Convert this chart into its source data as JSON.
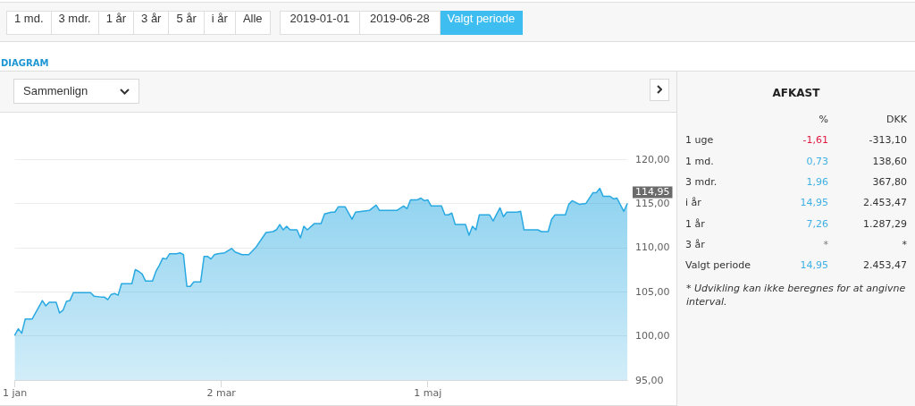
{
  "chart_data": [
    {
      "type": "area",
      "title": "DIAGRAM",
      "annotations": [
        "1 md.",
        "3 mdr.",
        "1 år",
        "3 år",
        "5 år",
        "i år",
        "Alle",
        "2019-01-01",
        "2019-06-28",
        "Valgt periode",
        "Sammenlign"
      ],
      "x": [
        "2019-01-01",
        "2019-01-02",
        "2019-01-03",
        "2019-01-04",
        "2019-01-06",
        "2019-01-09",
        "2019-01-10",
        "2019-01-11",
        "2019-01-13",
        "2019-01-14",
        "2019-01-15",
        "2019-01-16",
        "2019-01-17",
        "2019-01-18",
        "2019-01-23",
        "2019-01-24",
        "2019-01-26",
        "2019-01-27",
        "2019-01-28",
        "2019-01-29",
        "2019-01-30",
        "2019-01-31",
        "2019-02-01",
        "2019-02-04",
        "2019-02-05",
        "2019-02-06",
        "2019-02-07",
        "2019-02-08",
        "2019-02-10",
        "2019-02-11",
        "2019-02-12",
        "2019-02-13",
        "2019-02-14",
        "2019-02-15",
        "2019-02-17",
        "2019-02-18",
        "2019-02-19",
        "2019-02-20",
        "2019-02-21",
        "2019-02-22",
        "2019-02-24",
        "2019-02-25",
        "2019-02-26",
        "2019-02-27",
        "2019-02-28",
        "2019-03-01",
        "2019-03-03",
        "2019-03-05",
        "2019-03-06",
        "2019-03-08",
        "2019-03-10",
        "2019-03-12",
        "2019-03-15",
        "2019-03-17",
        "2019-03-18",
        "2019-03-19",
        "2019-03-20",
        "2019-03-21",
        "2019-03-22",
        "2019-03-24",
        "2019-03-25",
        "2019-03-26",
        "2019-03-27",
        "2019-03-29",
        "2019-03-31",
        "2019-04-01",
        "2019-04-03",
        "2019-04-04",
        "2019-04-05",
        "2019-04-07",
        "2019-04-09",
        "2019-04-10",
        "2019-04-12",
        "2019-04-14",
        "2019-04-16",
        "2019-04-17",
        "2019-04-22",
        "2019-04-24",
        "2019-04-25",
        "2019-04-26",
        "2019-04-28",
        "2019-04-29",
        "2019-04-30",
        "2019-05-01",
        "2019-05-02",
        "2019-05-05",
        "2019-05-06",
        "2019-05-07",
        "2019-05-08",
        "2019-05-09",
        "2019-05-12",
        "2019-05-13",
        "2019-05-14",
        "2019-05-15",
        "2019-05-16",
        "2019-05-19",
        "2019-05-20",
        "2019-05-22",
        "2019-05-23",
        "2019-05-24",
        "2019-05-27",
        "2019-05-28",
        "2019-05-29",
        "2019-06-02",
        "2019-06-03",
        "2019-06-05",
        "2019-06-06",
        "2019-06-07",
        "2019-06-10",
        "2019-06-11",
        "2019-06-12",
        "2019-06-14",
        "2019-06-16",
        "2019-06-18",
        "2019-06-19",
        "2019-06-20",
        "2019-06-21",
        "2019-06-23",
        "2019-06-24",
        "2019-06-25",
        "2019-06-27",
        "2019-06-28"
      ],
      "values": [
        100.1,
        100.8,
        100.3,
        101.9,
        101.9,
        104.0,
        103.4,
        103.8,
        103.8,
        102.6,
        102.9,
        103.9,
        104.0,
        104.9,
        104.9,
        104.5,
        104.4,
        104.4,
        104.1,
        104.7,
        104.8,
        104.6,
        105.9,
        105.9,
        107.5,
        107.3,
        107.0,
        106.2,
        106.2,
        107.3,
        108.0,
        108.8,
        108.7,
        109.3,
        109.3,
        109.4,
        109.2,
        105.6,
        105.6,
        106.1,
        106.1,
        109.0,
        109.0,
        108.7,
        109.2,
        109.3,
        109.4,
        109.9,
        109.5,
        109.2,
        109.2,
        110.0,
        111.7,
        111.8,
        112.0,
        112.6,
        112.0,
        112.4,
        112.0,
        112.0,
        111.1,
        112.4,
        112.0,
        112.7,
        112.7,
        113.8,
        114.0,
        114.0,
        114.6,
        114.6,
        113.2,
        114.0,
        114.1,
        114.2,
        114.8,
        114.2,
        114.2,
        114.7,
        114.4,
        115.4,
        115.4,
        115.6,
        115.3,
        115.4,
        114.7,
        114.7,
        113.7,
        113.7,
        113.9,
        112.6,
        112.6,
        111.4,
        112.4,
        112.0,
        113.7,
        113.7,
        113.0,
        114.5,
        113.5,
        114.0,
        114.0,
        114.1,
        112.0,
        112.0,
        111.8,
        111.8,
        113.2,
        113.7,
        113.7,
        114.9,
        115.3,
        114.9,
        115.0,
        116.2,
        116.2,
        116.7,
        115.8,
        115.8,
        115.5,
        115.6,
        114.1,
        114.95
      ],
      "value_labels": [
        null,
        null,
        null,
        null,
        null,
        null,
        null,
        null,
        null,
        null,
        null,
        null,
        null,
        null,
        null,
        null,
        null,
        null,
        null,
        null,
        null,
        null,
        null,
        null,
        null,
        null,
        null,
        null,
        null,
        null,
        null,
        null,
        null,
        null,
        null,
        null,
        null,
        null,
        null,
        null,
        null,
        null,
        null,
        null,
        null,
        null,
        null,
        null,
        null,
        null,
        null,
        null,
        null,
        null,
        null,
        null,
        null,
        null,
        null,
        null,
        null,
        null,
        null,
        null,
        null,
        null,
        null,
        null,
        null,
        null,
        null,
        null,
        null,
        null,
        null,
        null,
        null,
        null,
        null,
        null,
        null,
        null,
        null,
        null,
        null,
        null,
        null,
        null,
        null,
        null,
        null,
        null,
        null,
        null,
        null,
        null,
        null,
        null,
        null,
        null,
        null,
        null,
        null,
        null,
        null,
        null,
        null,
        null,
        null,
        null,
        null,
        null,
        null,
        null,
        null,
        null,
        null,
        null,
        null,
        null,
        null,
        "114,95"
      ],
      "color": "#29a9e1",
      "xlim": [
        "2019-01-01",
        "2019-06-28"
      ],
      "xticks": [
        {
          "value": "2019-01-01",
          "label": "1 jan"
        },
        {
          "value": "2019-03-02",
          "label": "2 mar"
        },
        {
          "value": "2019-05-01",
          "label": "1 maj"
        }
      ],
      "ylim": [
        95,
        120
      ],
      "yticks": [
        {
          "value": 95,
          "label": "95,00"
        },
        {
          "value": 100,
          "label": "100,00"
        },
        {
          "value": 105,
          "label": "105,00"
        },
        {
          "value": 110,
          "label": "110,00"
        },
        {
          "value": 115,
          "label": "115,00"
        },
        {
          "value": 120,
          "label": "120,00"
        }
      ],
      "grid": "y",
      "marker": "none",
      "line_style": "solid"
    },
    {
      "type": "other",
      "title": "AFKAST",
      "categories": [
        "1 uge",
        "1 md.",
        "3 mdr.",
        "i år",
        "1 år",
        "3 år",
        "Valgt periode"
      ],
      "series": [
        {
          "name": "%",
          "values": [
            -1.61,
            0.73,
            1.96,
            14.95,
            7.26,
            null,
            14.95
          ],
          "value_labels": [
            "-1,61",
            "0,73",
            "1,96",
            "14,95",
            "7,26",
            "*",
            "14,95"
          ]
        },
        {
          "name": "DKK",
          "values": [
            -313.1,
            138.6,
            367.8,
            2453.47,
            1287.29,
            null,
            2453.47
          ],
          "value_labels": [
            "-313,10",
            "138,60",
            "367,80",
            "2.453,47",
            "1.287,29",
            "*",
            "2.453,47"
          ]
        }
      ],
      "annotations": [
        "* Udvikling kan ikke beregnes for at angivne interval."
      ]
    }
  ]
}
